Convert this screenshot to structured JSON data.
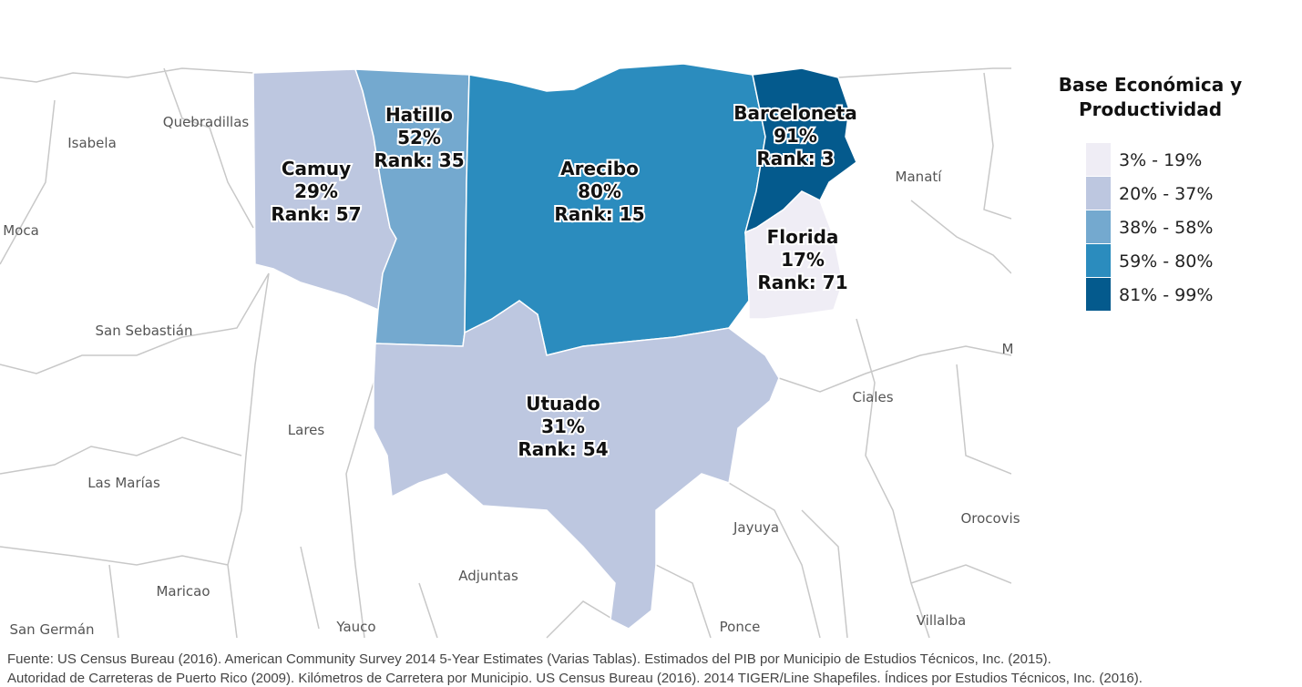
{
  "legend": {
    "title": "Base Económica y Productividad",
    "bins": [
      {
        "label": "3% - 19%",
        "color": "#efedf5"
      },
      {
        "label": "20% - 37%",
        "color": "#bdc7e0"
      },
      {
        "label": "38% - 58%",
        "color": "#74a9cf"
      },
      {
        "label": "59% - 80%",
        "color": "#2b8cbe"
      },
      {
        "label": "81% - 99%",
        "color": "#045a8d"
      }
    ]
  },
  "regions": [
    {
      "name": "Camuy",
      "percent": "29%",
      "rank": "Rank: 57",
      "color": "#bdc7e0"
    },
    {
      "name": "Hatillo",
      "percent": "52%",
      "rank": "Rank: 35",
      "color": "#74a9cf"
    },
    {
      "name": "Arecibo",
      "percent": "80%",
      "rank": "Rank: 15",
      "color": "#2b8cbe"
    },
    {
      "name": "Barceloneta",
      "percent": "91%",
      "rank": "Rank: 3",
      "color": "#045a8d"
    },
    {
      "name": "Florida",
      "percent": "17%",
      "rank": "Rank: 71",
      "color": "#efedf5"
    },
    {
      "name": "Utuado",
      "percent": "31%",
      "rank": "Rank: 54",
      "color": "#bdc7e0"
    }
  ],
  "context_labels": [
    "Quebradillas",
    "Isabela",
    "Moca",
    "San Sebastián",
    "Lares",
    "Las Marías",
    "Maricao",
    "San Germán",
    "Yauco",
    "Adjuntas",
    "Jayuya",
    "Ponce",
    "Villalba",
    "Orocovis",
    "Ciales",
    "Manatí",
    "M"
  ],
  "source": [
    "Fuente: US Census Bureau (2016). American Community Survey 2014 5-Year Estimates (Varias Tablas). Estimados del PIB por Municipio de Estudios Técnicos, Inc. (2015).",
    "Autoridad de Carreteras de Puerto Rico (2009). Kilómetros de Carretera por Municipio. US Census Bureau (2016). 2014 TIGER/Line Shapefiles. Índices por Estudios Técnicos, Inc. (2016)."
  ]
}
